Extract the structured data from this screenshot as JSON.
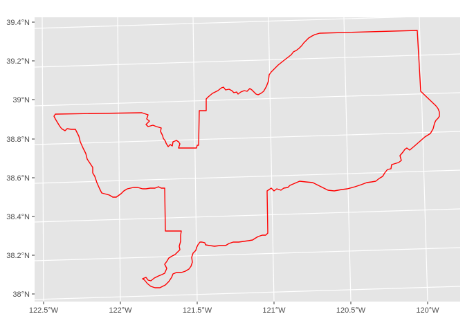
{
  "map": {
    "panel_color": "#e5e5e5",
    "grid_color": "#ffffff",
    "boundary_color": "#ff0000",
    "lat_labels": [
      "39.4°N",
      "39.2°N",
      "39°N",
      "38.8°N",
      "38.6°N",
      "38.4°N",
      "38.2°N",
      "38°N"
    ],
    "lon_labels": [
      "122.5°W",
      "122°W",
      "121.5°W",
      "121°W",
      "120.5°W",
      "120°W"
    ]
  }
}
